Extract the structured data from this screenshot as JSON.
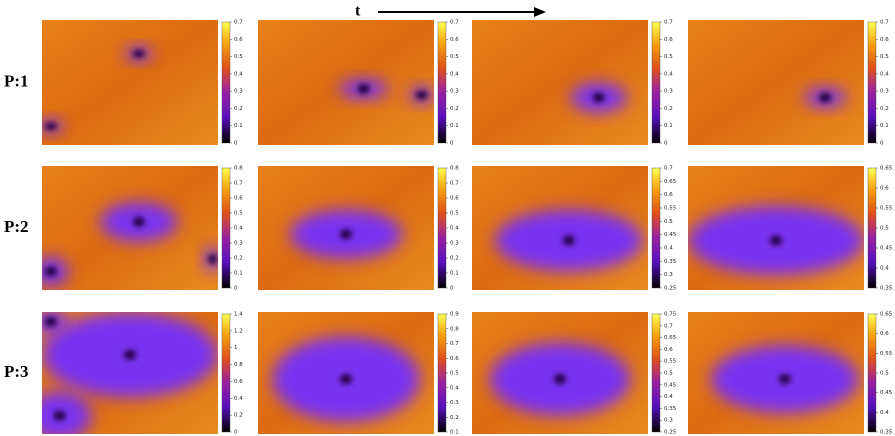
{
  "time_label": "t",
  "rows": [
    {
      "label": "P:1",
      "panels": [
        {
          "colorbar_ticks": [
            0,
            0.1,
            0.2,
            0.3,
            0.4,
            0.5,
            0.6,
            0.7
          ]
        },
        {
          "colorbar_ticks": [
            0,
            0.1,
            0.2,
            0.3,
            0.4,
            0.5,
            0.6,
            0.7
          ]
        },
        {
          "colorbar_ticks": [
            0,
            0.1,
            0.2,
            0.3,
            0.4,
            0.5,
            0.6,
            0.7
          ]
        },
        {
          "colorbar_ticks": [
            0,
            0.1,
            0.2,
            0.3,
            0.4,
            0.5,
            0.6,
            0.7
          ]
        }
      ]
    },
    {
      "label": "P:2",
      "panels": [
        {
          "colorbar_ticks": [
            0,
            0.1,
            0.2,
            0.3,
            0.4,
            0.5,
            0.6,
            0.7,
            0.8
          ]
        },
        {
          "colorbar_ticks": [
            0,
            0.1,
            0.2,
            0.3,
            0.4,
            0.5,
            0.6,
            0.7,
            0.8
          ]
        },
        {
          "colorbar_ticks": [
            0.25,
            0.3,
            0.35,
            0.4,
            0.45,
            0.5,
            0.55,
            0.6,
            0.65,
            0.7
          ]
        },
        {
          "colorbar_ticks": [
            0.35,
            0.4,
            0.45,
            0.5,
            0.55,
            0.6,
            0.65
          ]
        }
      ]
    },
    {
      "label": "P:3",
      "panels": [
        {
          "colorbar_ticks": [
            0,
            0.2,
            0.4,
            0.6,
            0.8,
            1,
            1.2,
            1.4
          ]
        },
        {
          "colorbar_ticks": [
            0.1,
            0.2,
            0.3,
            0.4,
            0.5,
            0.6,
            0.7,
            0.8,
            0.9
          ]
        },
        {
          "colorbar_ticks": [
            0.25,
            0.3,
            0.35,
            0.4,
            0.45,
            0.5,
            0.55,
            0.6,
            0.65,
            0.7,
            0.75
          ]
        },
        {
          "colorbar_ticks": [
            0.35,
            0.4,
            0.45,
            0.5,
            0.55,
            0.6,
            0.65
          ]
        }
      ]
    }
  ]
}
